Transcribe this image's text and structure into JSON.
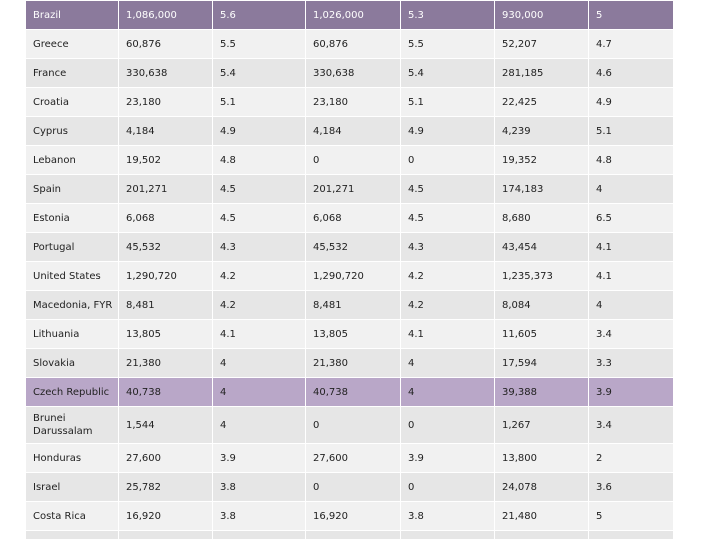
{
  "table": {
    "rows": [
      {
        "country": "Brazil",
        "c1": "1,086,000",
        "c2": "5.6",
        "c3": "1,026,000",
        "c4": "5.3",
        "c5": "930,000",
        "c6": "5"
      },
      {
        "country": "Greece",
        "c1": "60,876",
        "c2": "5.5",
        "c3": "60,876",
        "c4": "5.5",
        "c5": "52,207",
        "c6": "4.7"
      },
      {
        "country": "France",
        "c1": "330,638",
        "c2": "5.4",
        "c3": "330,638",
        "c4": "5.4",
        "c5": "281,185",
        "c6": "4.6"
      },
      {
        "country": "Croatia",
        "c1": "23,180",
        "c2": "5.1",
        "c3": "23,180",
        "c4": "5.1",
        "c5": "22,425",
        "c6": "4.9"
      },
      {
        "country": "Cyprus",
        "c1": "4,184",
        "c2": "4.9",
        "c3": "4,184",
        "c4": "4.9",
        "c5": "4,239",
        "c6": "5.1"
      },
      {
        "country": "Lebanon",
        "c1": "19,502",
        "c2": "4.8",
        "c3": "0",
        "c4": "0",
        "c5": "19,352",
        "c6": "4.8"
      },
      {
        "country": "Spain",
        "c1": "201,271",
        "c2": "4.5",
        "c3": "201,271",
        "c4": "4.5",
        "c5": "174,183",
        "c6": "4"
      },
      {
        "country": "Estonia",
        "c1": "6,068",
        "c2": "4.5",
        "c3": "6,068",
        "c4": "4.5",
        "c5": "8,680",
        "c6": "6.5"
      },
      {
        "country": "Portugal",
        "c1": "45,532",
        "c2": "4.3",
        "c3": "45,532",
        "c4": "4.3",
        "c5": "43,454",
        "c6": "4.1"
      },
      {
        "country": "United States",
        "c1": "1,290,720",
        "c2": "4.2",
        "c3": "1,290,720",
        "c4": "4.2",
        "c5": "1,235,373",
        "c6": "4.1"
      },
      {
        "country": "Macedonia, FYR",
        "c1": "8,481",
        "c2": "4.2",
        "c3": "8,481",
        "c4": "4.2",
        "c5": "8,084",
        "c6": "4"
      },
      {
        "country": "Lithuania",
        "c1": "13,805",
        "c2": "4.1",
        "c3": "13,805",
        "c4": "4.1",
        "c5": "11,605",
        "c6": "3.4"
      },
      {
        "country": "Slovakia",
        "c1": "21,380",
        "c2": "4",
        "c3": "21,380",
        "c4": "4",
        "c5": "17,594",
        "c6": "3.3"
      },
      {
        "country": "Czech Republic",
        "c1": "40,738",
        "c2": "4",
        "c3": "40,738",
        "c4": "4",
        "c5": "39,388",
        "c6": "3.9"
      },
      {
        "country": "Brunei Darussalam",
        "c1": "1,544",
        "c2": "4",
        "c3": "0",
        "c4": "0",
        "c5": "1,267",
        "c6": "3.4"
      },
      {
        "country": "Honduras",
        "c1": "27,600",
        "c2": "3.9",
        "c3": "27,600",
        "c4": "3.9",
        "c5": "13,800",
        "c6": "2"
      },
      {
        "country": "Israel",
        "c1": "25,782",
        "c2": "3.8",
        "c3": "0",
        "c4": "0",
        "c5": "24,078",
        "c6": "3.6"
      },
      {
        "country": "Costa Rica",
        "c1": "16,920",
        "c2": "3.8",
        "c3": "16,920",
        "c4": "3.8",
        "c5": "21,480",
        "c6": "5"
      }
    ]
  }
}
